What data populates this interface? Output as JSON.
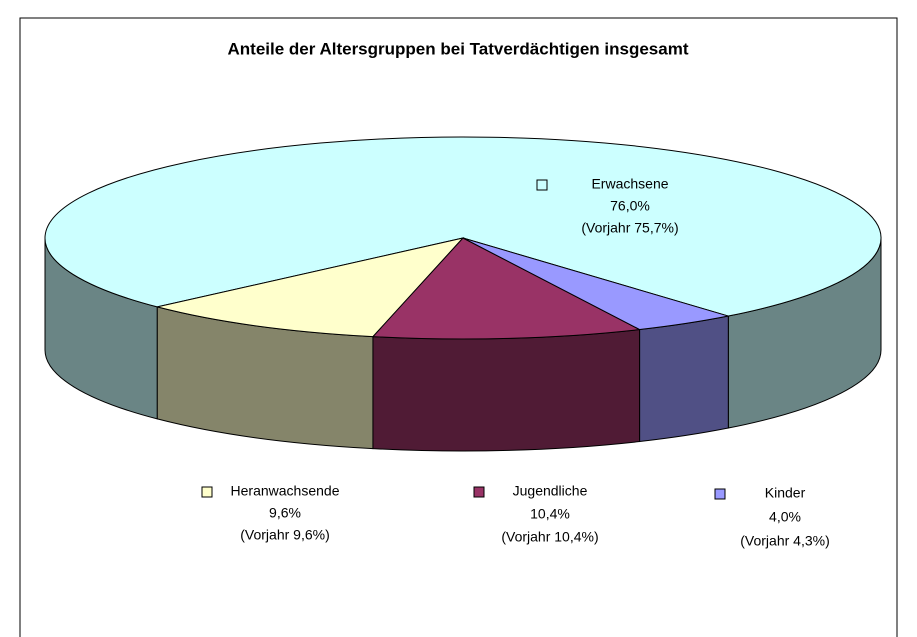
{
  "chart_data": {
    "type": "pie3d",
    "title": "Anteile der Altersgruppen bei Tatverdächtigen insgesamt",
    "categories": [
      "Erwachsene",
      "Heranwachsende",
      "Jugendliche",
      "Kinder"
    ],
    "values": [
      76.0,
      9.6,
      10.4,
      4.0
    ],
    "value_labels": [
      "76,0%",
      "9,6%",
      "10,4%",
      "4,0%"
    ],
    "prior_values": [
      75.7,
      9.6,
      10.4,
      4.3
    ],
    "prior_value_labels": [
      "(Vorjahr 75,7%)",
      "(Vorjahr 9,6%)",
      "(Vorjahr 10,4%)",
      "(Vorjahr 4,3%)"
    ],
    "colors": [
      "#ccffff",
      "#ffffcc",
      "#993366",
      "#9999ff"
    ]
  }
}
